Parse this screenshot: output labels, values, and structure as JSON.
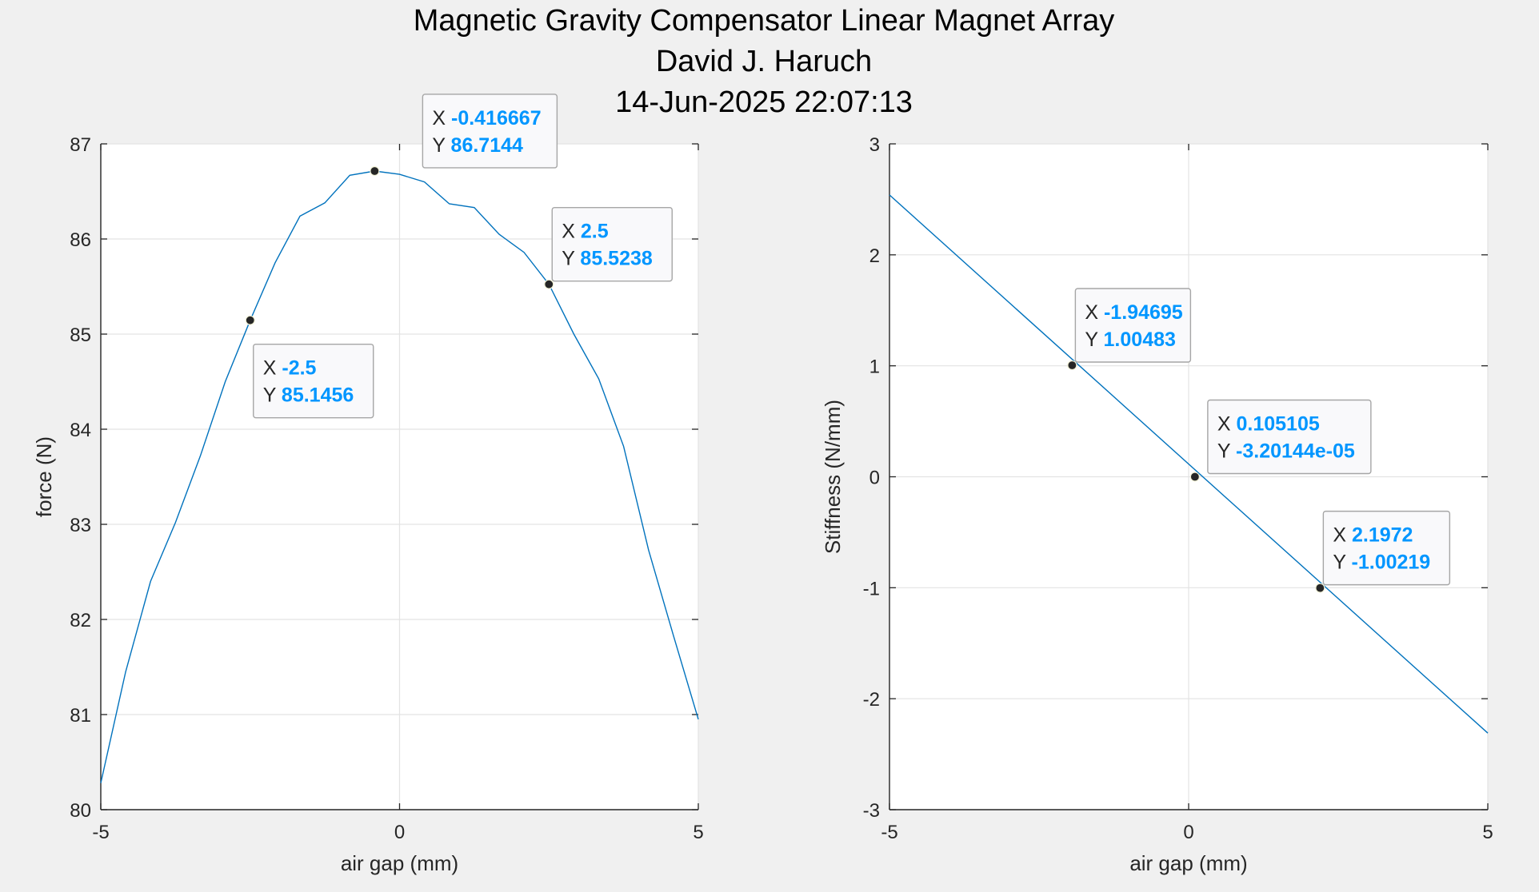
{
  "figure": {
    "title_lines": [
      "Magnetic Gravity Compensator Linear Magnet Array",
      "David J. Haruch",
      "14-Jun-2025 22:07:13"
    ],
    "background": "#f0f0f0",
    "line_color": "#0072bd",
    "datatip_value_color": "#0096ff"
  },
  "chart_data": [
    {
      "type": "line",
      "title": "",
      "xlabel": "air gap (mm)",
      "ylabel": "force (N)",
      "xlim": [
        -5,
        5
      ],
      "ylim": [
        80,
        87
      ],
      "xticks": [
        -5,
        0,
        5
      ],
      "yticks": [
        80,
        81,
        82,
        83,
        84,
        85,
        86,
        87
      ],
      "xtick_labels": [
        "-5",
        "0",
        "5"
      ],
      "ytick_labels": [
        "80",
        "81",
        "82",
        "83",
        "84",
        "85",
        "86",
        "87"
      ],
      "grid": true,
      "series": [
        {
          "x": [
            -5,
            -4.583,
            -4.167,
            -3.75,
            -3.333,
            -2.917,
            -2.5,
            -2.083,
            -1.667,
            -1.25,
            -0.833,
            -0.417,
            0,
            0.417,
            0.833,
            1.25,
            1.667,
            2.083,
            2.5,
            2.917,
            3.333,
            3.75,
            4.167,
            4.583,
            5
          ],
          "y": [
            80.28,
            81.45,
            82.4,
            83.02,
            83.72,
            84.5,
            85.1456,
            85.75,
            86.24,
            86.38,
            86.67,
            86.7144,
            86.68,
            86.6,
            86.37,
            86.33,
            86.05,
            85.86,
            85.5238,
            85.0,
            84.53,
            83.82,
            82.73,
            81.83,
            80.95
          ]
        }
      ],
      "datatips": [
        {
          "x_prefix": "X",
          "y_prefix": "Y",
          "x": -0.416667,
          "y": 86.7144,
          "x_text": "-0.416667",
          "y_text": "86.7144"
        },
        {
          "x_prefix": "X",
          "y_prefix": "Y",
          "x": 2.5,
          "y": 85.5238,
          "x_text": "2.5",
          "y_text": "85.5238"
        },
        {
          "x_prefix": "X",
          "y_prefix": "Y",
          "x": -2.5,
          "y": 85.1456,
          "x_text": "-2.5",
          "y_text": "85.1456"
        }
      ]
    },
    {
      "type": "line",
      "title": "",
      "xlabel": "air gap (mm)",
      "ylabel": "Stiffness (N/mm)",
      "xlim": [
        -5,
        5
      ],
      "ylim": [
        -3,
        3
      ],
      "xticks": [
        -5,
        0,
        5
      ],
      "yticks": [
        -3,
        -2,
        -1,
        0,
        1,
        2,
        3
      ],
      "xtick_labels": [
        "-5",
        "0",
        "5"
      ],
      "ytick_labels": [
        "-3",
        "-2",
        "-1",
        "0",
        "1",
        "2",
        "3"
      ],
      "grid": true,
      "series": [
        {
          "x": [
            -5,
            5
          ],
          "y": [
            2.54,
            -2.31
          ]
        }
      ],
      "datatips": [
        {
          "x_prefix": "X",
          "y_prefix": "Y",
          "x": -1.94695,
          "y": 1.00483,
          "x_text": "-1.94695",
          "y_text": "1.00483"
        },
        {
          "x_prefix": "X",
          "y_prefix": "Y",
          "x": 0.105105,
          "y": -3.20144e-05,
          "x_text": "0.105105",
          "y_text": "-3.20144e-05"
        },
        {
          "x_prefix": "X",
          "y_prefix": "Y",
          "x": 2.1972,
          "y": -1.00219,
          "x_text": "2.1972",
          "y_text": "-1.00219"
        }
      ]
    }
  ]
}
